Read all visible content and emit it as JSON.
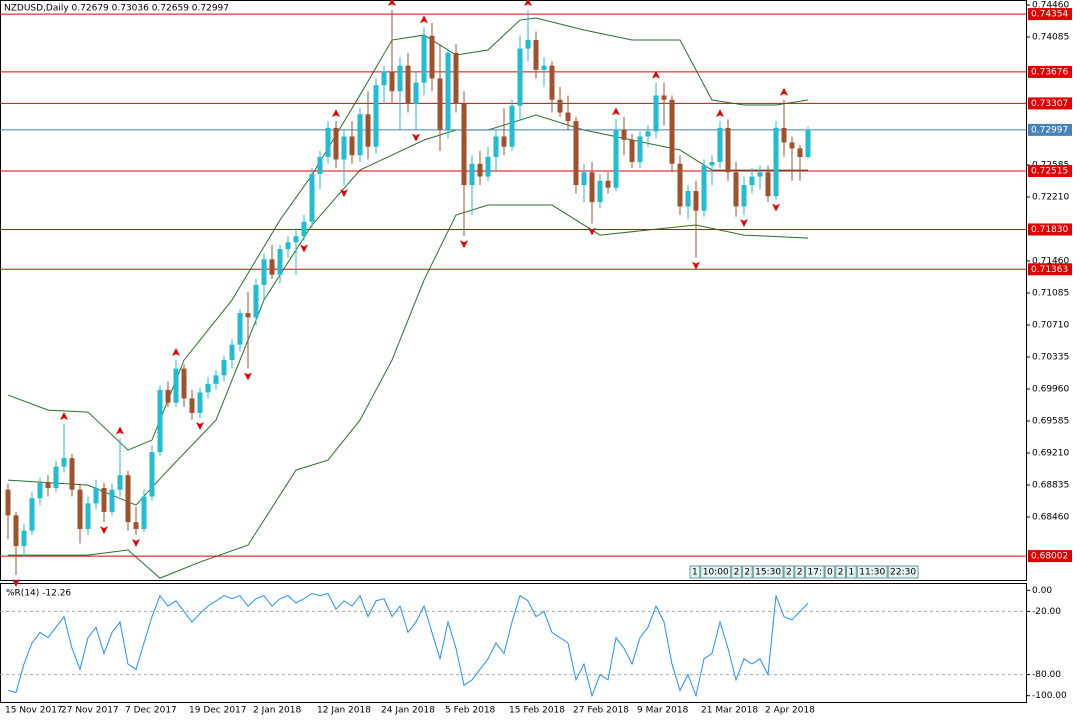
{
  "chart_data": [
    {
      "type": "candlestick",
      "title": "NZDUSD,Daily  0.72679 0.73036 0.72659 0.72997",
      "categories": [
        "15 Nov 2017",
        null,
        null,
        null,
        null,
        null,
        null,
        "27 Nov 2017",
        null,
        null,
        null,
        null,
        null,
        null,
        null,
        "7 Dec 2017",
        null,
        null,
        null,
        null,
        null,
        null,
        null,
        "19 Dec 2017",
        null,
        null,
        null,
        null,
        null,
        null,
        null,
        "2 Jan 2018",
        null,
        null,
        null,
        null,
        null,
        null,
        null,
        "12 Jan 2018",
        null,
        null,
        null,
        null,
        null,
        null,
        null,
        "24 Jan 2018",
        null,
        null,
        null,
        null,
        null,
        null,
        null,
        "5 Feb 2018",
        null,
        null,
        null,
        null,
        null,
        null,
        null,
        "15 Feb 2018",
        null,
        null,
        null,
        null,
        null,
        null,
        null,
        "27 Feb 2018",
        null,
        null,
        null,
        null,
        null,
        null,
        null,
        "9 Mar 2018",
        null,
        null,
        null,
        null,
        null,
        null,
        null,
        "21 Mar 2018",
        null,
        null,
        null,
        null,
        null,
        null,
        null,
        "2 Apr 2018",
        null,
        null,
        null,
        null,
        null
      ],
      "open": [
        0.6878,
        0.6848,
        0.6812,
        0.683,
        0.6868,
        0.6886,
        0.688,
        0.6905,
        0.6915,
        0.6878,
        0.6832,
        0.6862,
        0.688,
        0.6852,
        0.6878,
        0.6895,
        0.684,
        0.6832,
        0.687,
        0.6922,
        0.6995,
        0.698,
        0.702,
        0.6985,
        0.6968,
        0.6992,
        0.7002,
        0.7012,
        0.703,
        0.7048,
        0.7085,
        0.708,
        0.7118,
        0.7148,
        0.713,
        0.716,
        0.7168,
        0.7175,
        0.7192,
        0.7248,
        0.7268,
        0.7302,
        0.7265,
        0.7292,
        0.727,
        0.7318,
        0.728,
        0.7352,
        0.7368,
        0.7345,
        0.7375,
        0.733,
        0.7355,
        0.741,
        0.736,
        0.73,
        0.739,
        0.733,
        0.7235,
        0.726,
        0.7245,
        0.7268,
        0.7292,
        0.728,
        0.7328,
        0.7395,
        0.7405,
        0.737,
        0.7375,
        0.7335,
        0.732,
        0.731,
        0.7235,
        0.725,
        0.7215,
        0.724,
        0.7232,
        0.73,
        0.7288,
        0.7262,
        0.7292,
        0.7298,
        0.734,
        0.7335,
        0.726,
        0.721,
        0.7228,
        0.7205,
        0.7258,
        0.7262,
        0.7302,
        0.725,
        0.721,
        0.7235,
        0.7245,
        0.725,
        0.7222,
        0.7302,
        0.7285,
        0.7278,
        0.72679
      ],
      "high": [
        0.6885,
        0.6852,
        0.6838,
        0.6875,
        0.6892,
        0.6895,
        0.6912,
        0.6955,
        0.692,
        0.6885,
        0.687,
        0.689,
        0.6886,
        0.6885,
        0.6938,
        0.69,
        0.6858,
        0.6878,
        0.693,
        0.7,
        0.7005,
        0.703,
        0.7025,
        0.6995,
        0.6998,
        0.701,
        0.7018,
        0.7035,
        0.7055,
        0.709,
        0.711,
        0.7125,
        0.7155,
        0.7165,
        0.7165,
        0.7175,
        0.7185,
        0.72,
        0.7255,
        0.7275,
        0.731,
        0.731,
        0.73,
        0.731,
        0.7325,
        0.7345,
        0.736,
        0.7375,
        0.744,
        0.7385,
        0.739,
        0.7368,
        0.742,
        0.7425,
        0.74,
        0.7395,
        0.74,
        0.7345,
        0.727,
        0.7275,
        0.728,
        0.73,
        0.7325,
        0.7335,
        0.741,
        0.744,
        0.7415,
        0.7385,
        0.738,
        0.735,
        0.734,
        0.7315,
        0.726,
        0.7262,
        0.7248,
        0.725,
        0.7312,
        0.7315,
        0.7295,
        0.7298,
        0.7305,
        0.7355,
        0.7355,
        0.734,
        0.727,
        0.7235,
        0.724,
        0.7265,
        0.727,
        0.731,
        0.7312,
        0.7262,
        0.7245,
        0.7255,
        0.7258,
        0.7258,
        0.731,
        0.7335,
        0.7292,
        0.7282,
        0.73036
      ],
      "low": [
        0.682,
        0.6778,
        0.68,
        0.6825,
        0.686,
        0.687,
        0.6875,
        0.6898,
        0.687,
        0.6815,
        0.6825,
        0.6855,
        0.684,
        0.6848,
        0.687,
        0.683,
        0.6825,
        0.6828,
        0.6865,
        0.6918,
        0.6975,
        0.6975,
        0.6975,
        0.696,
        0.6962,
        0.6985,
        0.6995,
        0.7005,
        0.702,
        0.704,
        0.702,
        0.707,
        0.71,
        0.7125,
        0.712,
        0.715,
        0.713,
        0.717,
        0.7185,
        0.723,
        0.726,
        0.7255,
        0.7235,
        0.726,
        0.7262,
        0.7265,
        0.7272,
        0.733,
        0.733,
        0.73,
        0.732,
        0.73,
        0.734,
        0.7345,
        0.7275,
        0.729,
        0.732,
        0.7175,
        0.72,
        0.7235,
        0.724,
        0.725,
        0.727,
        0.7275,
        0.731,
        0.738,
        0.736,
        0.735,
        0.732,
        0.7315,
        0.73,
        0.7225,
        0.7215,
        0.719,
        0.7208,
        0.7225,
        0.7228,
        0.727,
        0.7255,
        0.7255,
        0.728,
        0.729,
        0.7305,
        0.725,
        0.72,
        0.7195,
        0.715,
        0.7198,
        0.7235,
        0.7255,
        0.724,
        0.7198,
        0.72,
        0.7225,
        0.723,
        0.7215,
        0.7218,
        0.7268,
        0.724,
        0.724,
        0.72659
      ],
      "close": [
        0.6848,
        0.6812,
        0.683,
        0.6868,
        0.6886,
        0.688,
        0.6905,
        0.6915,
        0.6878,
        0.6832,
        0.6862,
        0.688,
        0.6852,
        0.6878,
        0.6895,
        0.684,
        0.6832,
        0.687,
        0.6922,
        0.6995,
        0.698,
        0.702,
        0.6985,
        0.6968,
        0.6992,
        0.7002,
        0.7012,
        0.703,
        0.7048,
        0.7085,
        0.708,
        0.7118,
        0.7148,
        0.713,
        0.716,
        0.7168,
        0.7175,
        0.7192,
        0.7248,
        0.7268,
        0.7302,
        0.7265,
        0.7292,
        0.727,
        0.7318,
        0.728,
        0.7352,
        0.7368,
        0.7345,
        0.7375,
        0.733,
        0.7355,
        0.741,
        0.736,
        0.73,
        0.739,
        0.733,
        0.7235,
        0.726,
        0.7245,
        0.7268,
        0.7292,
        0.728,
        0.7328,
        0.7395,
        0.7405,
        0.737,
        0.7375,
        0.7335,
        0.732,
        0.731,
        0.7235,
        0.725,
        0.7215,
        0.724,
        0.7232,
        0.73,
        0.7288,
        0.7262,
        0.7292,
        0.7298,
        0.734,
        0.7335,
        0.726,
        0.721,
        0.7228,
        0.7205,
        0.7258,
        0.7262,
        0.7302,
        0.725,
        0.721,
        0.7235,
        0.7245,
        0.725,
        0.7222,
        0.7302,
        0.7285,
        0.7278,
        0.72679,
        0.72997
      ],
      "up_color": "#1fbcd2",
      "down_color": "#a0522d",
      "ylim": [
        0.67722,
        0.74519
      ],
      "yticks": [
        {
          "value": 0.7446,
          "label": "0.74460"
        },
        {
          "value": 0.74085,
          "label": "0.74085"
        },
        {
          "value": 0.72585,
          "label": "0.72585"
        },
        {
          "value": 0.7221,
          "label": "0.72210"
        },
        {
          "value": 0.7146,
          "label": "0.71460"
        },
        {
          "value": 0.71085,
          "label": "0.71085"
        },
        {
          "value": 0.7071,
          "label": "0.70710"
        },
        {
          "value": 0.70335,
          "label": "0.70335"
        },
        {
          "value": 0.6996,
          "label": "0.69960"
        },
        {
          "value": 0.69585,
          "label": "0.69585"
        },
        {
          "value": 0.6921,
          "label": "0.69210"
        },
        {
          "value": 0.68835,
          "label": "0.68835"
        },
        {
          "value": 0.6846,
          "label": "0.68460"
        }
      ],
      "hlines": [
        {
          "value": 0.74354,
          "label": "0.74354",
          "color": "#e00000"
        },
        {
          "value": 0.73676,
          "label": "0.73676",
          "color": "#e00000"
        },
        {
          "value": 0.73307,
          "label": "0.73307",
          "color": "#e00000"
        },
        {
          "value": 0.72997,
          "label": "0.72997",
          "color": "#4682b4"
        },
        {
          "value": 0.72515,
          "label": "0.72515",
          "color": "#e00000"
        },
        {
          "value": 0.7183,
          "label": "0.71830",
          "color": "#e00000"
        },
        {
          "value": 0.71363,
          "label": "0.71363",
          "color": "#e00000"
        },
        {
          "value": 0.68002,
          "label": "0.68002",
          "color": "#e00000"
        }
      ],
      "lines": [
        {
          "color": "#2b6e2b",
          "x": [
            0,
            5,
            10,
            15,
            18,
            22,
            28,
            34,
            38,
            44,
            48,
            52,
            56,
            60,
            64,
            66,
            72,
            78,
            84,
            88,
            92,
            96,
            100
          ],
          "values": [
            0.69889,
            0.69713,
            0.6969,
            0.69245,
            0.69362,
            0.70299,
            0.71003,
            0.7194,
            0.72468,
            0.73405,
            0.7405,
            0.74108,
            0.73874,
            0.73933,
            0.74284,
            0.74308,
            0.74167,
            0.7405,
            0.7405,
            0.73347,
            0.73288,
            0.73288,
            0.73347
          ]
        },
        {
          "color": "#2b6e2b",
          "x": [
            0,
            10,
            16,
            20,
            26,
            32,
            38,
            44,
            48,
            52,
            56,
            60,
            66,
            72,
            78,
            84,
            88,
            92,
            100
          ],
          "values": [
            0.68893,
            0.68834,
            0.686,
            0.6901,
            0.69596,
            0.71003,
            0.71882,
            0.72526,
            0.72702,
            0.72878,
            0.72995,
            0.72995,
            0.73171,
            0.72995,
            0.72878,
            0.72761,
            0.72526,
            0.72526,
            0.72526
          ]
        },
        {
          "color": "#2b6e2b",
          "x": [
            0,
            10,
            15,
            19,
            24,
            30,
            36,
            40,
            44,
            48,
            52,
            56,
            60,
            68,
            74,
            80,
            86,
            92,
            100
          ],
          "values": [
            0.68014,
            0.68014,
            0.68073,
            0.67744,
            0.67932,
            0.68131,
            0.6901,
            0.69127,
            0.69596,
            0.70299,
            0.71237,
            0.71999,
            0.72116,
            0.72116,
            0.71764,
            0.71823,
            0.71882,
            0.71764,
            0.71729
          ]
        }
      ],
      "fractal_color": "#e00000",
      "fractals_up": {
        "x": [
          7,
          14,
          21,
          41,
          48,
          52,
          65,
          76,
          81,
          89,
          97
        ],
        "values": [
          0.6955,
          0.6938,
          0.703,
          0.731,
          0.744,
          0.742,
          0.744,
          0.7312,
          0.7355,
          0.731,
          0.7335
        ]
      },
      "fractals_down": {
        "x": [
          1,
          12,
          16,
          24,
          30,
          37,
          42,
          51,
          57,
          73,
          86,
          92,
          96
        ],
        "values": [
          0.6778,
          0.684,
          0.6825,
          0.6962,
          0.702,
          0.717,
          0.7235,
          0.73,
          0.7175,
          0.719,
          0.715,
          0.72,
          0.7218
        ]
      },
      "events": [
        "1",
        "10:00",
        "2",
        "2",
        "15:30",
        "2",
        "2",
        "17:",
        "0",
        "2",
        "1",
        "11:30",
        "22:30"
      ]
    },
    {
      "type": "line",
      "title": "%R(14) -12.26",
      "color": "#1e90ff",
      "values": [
        -95,
        -97,
        -70,
        -50,
        -40,
        -45,
        -35,
        -25,
        -55,
        -75,
        -45,
        -35,
        -60,
        -40,
        -30,
        -70,
        -75,
        -50,
        -25,
        -5,
        -15,
        -10,
        -20,
        -30,
        -22,
        -15,
        -10,
        -5,
        -8,
        -5,
        -15,
        -8,
        -5,
        -15,
        -8,
        -5,
        -12,
        -8,
        -3,
        -5,
        -3,
        -18,
        -10,
        -15,
        -5,
        -25,
        -10,
        -8,
        -25,
        -15,
        -40,
        -30,
        -15,
        -40,
        -65,
        -30,
        -55,
        -90,
        -85,
        -75,
        -65,
        -50,
        -60,
        -30,
        -5,
        -10,
        -25,
        -20,
        -40,
        -45,
        -50,
        -85,
        -70,
        -100,
        -80,
        -85,
        -45,
        -55,
        -70,
        -45,
        -35,
        -15,
        -30,
        -70,
        -95,
        -80,
        -100,
        -65,
        -60,
        -30,
        -55,
        -85,
        -65,
        -70,
        -65,
        -80,
        -5,
        -25,
        -28,
        -20,
        -12.26
      ],
      "ylim": [
        -106,
        6
      ],
      "yticks": [
        {
          "value": 0,
          "label": "0.00"
        },
        {
          "value": -20,
          "label": "-20.00"
        },
        {
          "value": -80,
          "label": "-80.00"
        },
        {
          "value": -100,
          "label": "-100.00"
        }
      ],
      "levels": [
        -20,
        -80
      ]
    }
  ]
}
